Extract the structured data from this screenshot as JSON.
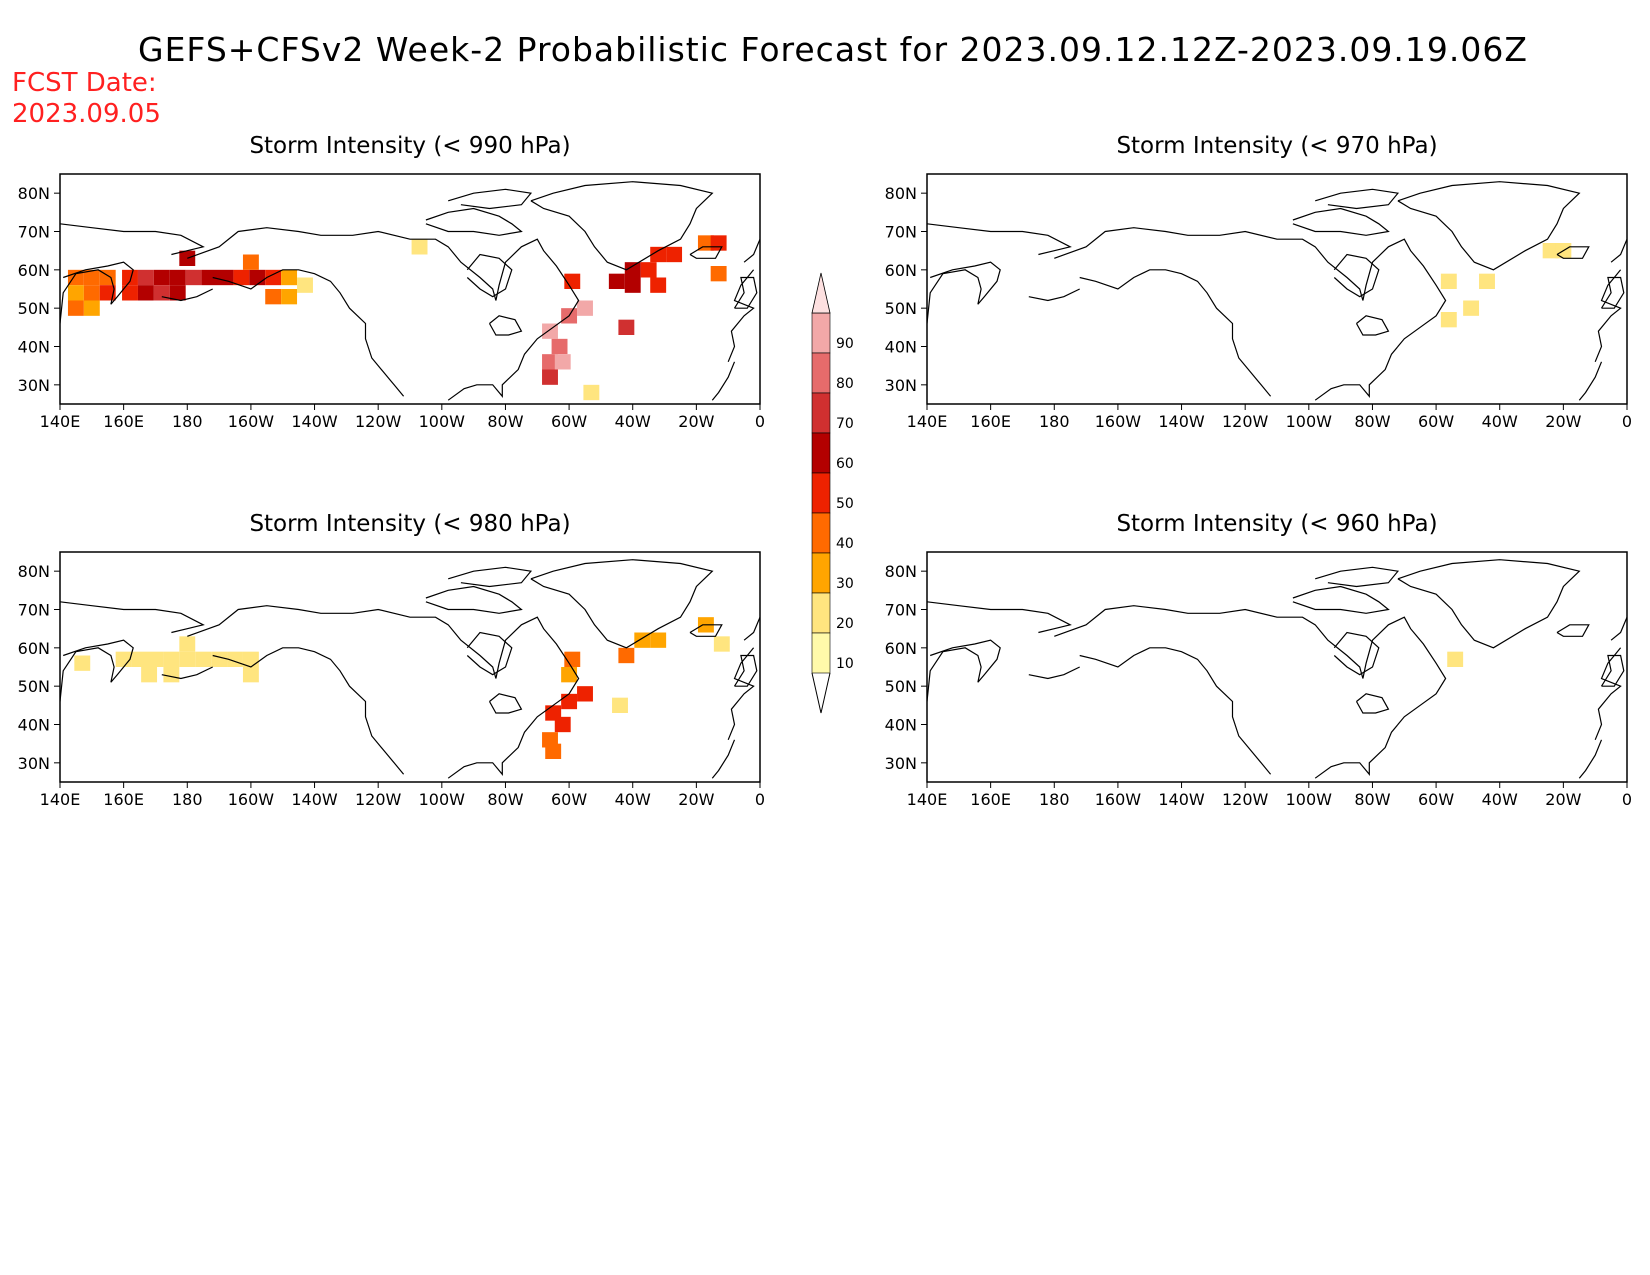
{
  "title": "GEFS+CFSv2 Week-2 Probabilistic Forecast for 2023.09.12.12Z-2023.09.19.06Z",
  "fcst_date_label": "FCST Date:",
  "fcst_date_value": "2023.09.05",
  "colors": {
    "text": "#000000",
    "fcst_date": "#ff2020",
    "coast": "#000000"
  },
  "colorbar": {
    "levels": [
      10,
      20,
      30,
      40,
      50,
      60,
      70,
      80,
      90
    ],
    "tick_labels": [
      "10",
      "20",
      "30",
      "40",
      "50",
      "60",
      "70",
      "80",
      "90"
    ],
    "colors": [
      "#fffaaa",
      "#ffe57f",
      "#ffa500",
      "#ff6a00",
      "#ee2200",
      "#b30000",
      "#d03030",
      "#e66b6b",
      "#f2a8a8",
      "#fde0e0"
    ]
  },
  "map": {
    "lon_range": [
      140,
      360
    ],
    "lat_range": [
      25,
      85
    ],
    "x_tick_labels": [
      "140E",
      "160E",
      "180",
      "160W",
      "140W",
      "120W",
      "100W",
      "80W",
      "60W",
      "40W",
      "20W",
      "0"
    ],
    "y_tick_labels": [
      "30N",
      "40N",
      "50N",
      "60N",
      "70N",
      "80N"
    ]
  },
  "panels": [
    {
      "title": "Storm Intensity (< 990 hPa)",
      "cells": [
        {
          "lon": 145,
          "lat": 58,
          "p": 30
        },
        {
          "lon": 150,
          "lat": 58,
          "p": 35
        },
        {
          "lon": 155,
          "lat": 58,
          "p": 30
        },
        {
          "lon": 145,
          "lat": 54,
          "p": 25
        },
        {
          "lon": 150,
          "lat": 54,
          "p": 35
        },
        {
          "lon": 155,
          "lat": 54,
          "p": 40
        },
        {
          "lon": 145,
          "lat": 50,
          "p": 30
        },
        {
          "lon": 150,
          "lat": 50,
          "p": 25
        },
        {
          "lon": 162,
          "lat": 58,
          "p": 45
        },
        {
          "lon": 167,
          "lat": 58,
          "p": 60
        },
        {
          "lon": 172,
          "lat": 58,
          "p": 55
        },
        {
          "lon": 162,
          "lat": 54,
          "p": 40
        },
        {
          "lon": 167,
          "lat": 54,
          "p": 55
        },
        {
          "lon": 172,
          "lat": 54,
          "p": 60
        },
        {
          "lon": 177,
          "lat": 58,
          "p": 55
        },
        {
          "lon": 182,
          "lat": 58,
          "p": 60
        },
        {
          "lon": 177,
          "lat": 54,
          "p": 50
        },
        {
          "lon": 180,
          "lat": 63,
          "p": 55
        },
        {
          "lon": 187,
          "lat": 58,
          "p": 55
        },
        {
          "lon": 192,
          "lat": 58,
          "p": 50
        },
        {
          "lon": 197,
          "lat": 58,
          "p": 45
        },
        {
          "lon": 202,
          "lat": 58,
          "p": 50
        },
        {
          "lon": 200,
          "lat": 62,
          "p": 35
        },
        {
          "lon": 207,
          "lat": 58,
          "p": 40
        },
        {
          "lon": 212,
          "lat": 58,
          "p": 25
        },
        {
          "lon": 217,
          "lat": 56,
          "p": 15
        },
        {
          "lon": 207,
          "lat": 53,
          "p": 35
        },
        {
          "lon": 212,
          "lat": 53,
          "p": 25
        },
        {
          "lon": 253,
          "lat": 66,
          "p": 15
        },
        {
          "lon": 301,
          "lat": 57,
          "p": 45
        },
        {
          "lon": 300,
          "lat": 48,
          "p": 75
        },
        {
          "lon": 305,
          "lat": 50,
          "p": 80
        },
        {
          "lon": 294,
          "lat": 44,
          "p": 80
        },
        {
          "lon": 297,
          "lat": 40,
          "p": 75
        },
        {
          "lon": 294,
          "lat": 36,
          "p": 75
        },
        {
          "lon": 298,
          "lat": 36,
          "p": 80
        },
        {
          "lon": 294,
          "lat": 32,
          "p": 65
        },
        {
          "lon": 315,
          "lat": 57,
          "p": 55
        },
        {
          "lon": 320,
          "lat": 60,
          "p": 50
        },
        {
          "lon": 325,
          "lat": 60,
          "p": 45
        },
        {
          "lon": 320,
          "lat": 56,
          "p": 50
        },
        {
          "lon": 328,
          "lat": 64,
          "p": 45
        },
        {
          "lon": 333,
          "lat": 64,
          "p": 45
        },
        {
          "lon": 328,
          "lat": 56,
          "p": 45
        },
        {
          "lon": 343,
          "lat": 67,
          "p": 35
        },
        {
          "lon": 347,
          "lat": 67,
          "p": 40
        },
        {
          "lon": 347,
          "lat": 59,
          "p": 35
        },
        {
          "lon": 318,
          "lat": 45,
          "p": 60
        },
        {
          "lon": 307,
          "lat": 28,
          "p": 15
        }
      ]
    },
    {
      "title": "Storm Intensity (< 970 hPa)",
      "cells": [
        {
          "lon": 336,
          "lat": 65,
          "p": 15
        },
        {
          "lon": 340,
          "lat": 65,
          "p": 15
        },
        {
          "lon": 304,
          "lat": 57,
          "p": 15
        },
        {
          "lon": 316,
          "lat": 57,
          "p": 15
        },
        {
          "lon": 311,
          "lat": 50,
          "p": 15
        },
        {
          "lon": 304,
          "lat": 47,
          "p": 12
        }
      ]
    },
    {
      "title": "Storm Intensity (< 980 hPa)",
      "cells": [
        {
          "lon": 147,
          "lat": 56,
          "p": 15
        },
        {
          "lon": 160,
          "lat": 57,
          "p": 15
        },
        {
          "lon": 165,
          "lat": 57,
          "p": 15
        },
        {
          "lon": 170,
          "lat": 57,
          "p": 15
        },
        {
          "lon": 175,
          "lat": 57,
          "p": 18
        },
        {
          "lon": 180,
          "lat": 61,
          "p": 18
        },
        {
          "lon": 180,
          "lat": 57,
          "p": 18
        },
        {
          "lon": 185,
          "lat": 57,
          "p": 15
        },
        {
          "lon": 190,
          "lat": 57,
          "p": 15
        },
        {
          "lon": 195,
          "lat": 57,
          "p": 15
        },
        {
          "lon": 200,
          "lat": 57,
          "p": 15
        },
        {
          "lon": 168,
          "lat": 53,
          "p": 15
        },
        {
          "lon": 175,
          "lat": 53,
          "p": 15
        },
        {
          "lon": 200,
          "lat": 53,
          "p": 12
        },
        {
          "lon": 301,
          "lat": 57,
          "p": 35
        },
        {
          "lon": 300,
          "lat": 53,
          "p": 20
        },
        {
          "lon": 305,
          "lat": 48,
          "p": 45
        },
        {
          "lon": 300,
          "lat": 46,
          "p": 45
        },
        {
          "lon": 295,
          "lat": 43,
          "p": 45
        },
        {
          "lon": 298,
          "lat": 40,
          "p": 40
        },
        {
          "lon": 294,
          "lat": 36,
          "p": 35
        },
        {
          "lon": 295,
          "lat": 33,
          "p": 30
        },
        {
          "lon": 318,
          "lat": 58,
          "p": 30
        },
        {
          "lon": 323,
          "lat": 62,
          "p": 25
        },
        {
          "lon": 328,
          "lat": 62,
          "p": 25
        },
        {
          "lon": 343,
          "lat": 66,
          "p": 25
        },
        {
          "lon": 348,
          "lat": 61,
          "p": 15
        },
        {
          "lon": 316,
          "lat": 45,
          "p": 12
        }
      ]
    },
    {
      "title": "Storm Intensity (< 960 hPa)",
      "cells": [
        {
          "lon": 306,
          "lat": 57,
          "p": 12
        }
      ]
    }
  ]
}
